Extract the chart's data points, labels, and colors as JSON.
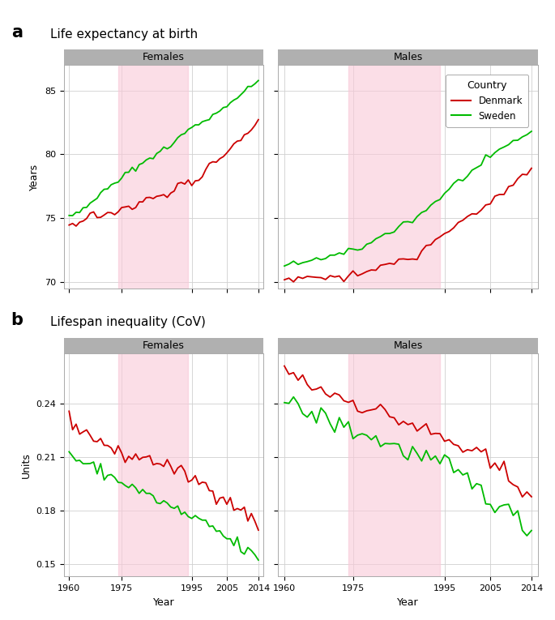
{
  "years": [
    1960,
    1961,
    1962,
    1963,
    1964,
    1965,
    1966,
    1967,
    1968,
    1969,
    1970,
    1971,
    1972,
    1973,
    1974,
    1975,
    1976,
    1977,
    1978,
    1979,
    1980,
    1981,
    1982,
    1983,
    1984,
    1985,
    1986,
    1987,
    1988,
    1989,
    1990,
    1991,
    1992,
    1993,
    1994,
    1995,
    1996,
    1997,
    1998,
    1999,
    2000,
    2001,
    2002,
    2003,
    2004,
    2005,
    2006,
    2007,
    2008,
    2009,
    2010,
    2011,
    2012,
    2013,
    2014
  ],
  "le_female_denmark": [
    74.4,
    74.6,
    74.3,
    74.5,
    74.8,
    75.0,
    75.2,
    75.4,
    75.1,
    75.0,
    75.3,
    75.5,
    75.4,
    75.5,
    75.7,
    75.9,
    76.0,
    75.9,
    75.8,
    76.0,
    76.1,
    76.3,
    76.6,
    76.8,
    76.6,
    76.7,
    76.9,
    76.8,
    76.7,
    77.0,
    77.2,
    77.5,
    77.8,
    77.8,
    77.9,
    77.7,
    77.9,
    78.2,
    78.4,
    78.8,
    79.2,
    79.4,
    79.4,
    79.7,
    80.0,
    80.2,
    80.5,
    80.7,
    81.0,
    81.3,
    81.5,
    81.7,
    82.0,
    82.2,
    82.6
  ],
  "le_female_sweden": [
    75.1,
    75.3,
    75.5,
    75.4,
    75.7,
    75.9,
    76.2,
    76.5,
    76.7,
    76.9,
    77.1,
    77.3,
    77.5,
    77.7,
    77.9,
    78.1,
    78.4,
    78.6,
    78.8,
    79.0,
    79.1,
    79.3,
    79.6,
    79.7,
    79.9,
    80.1,
    80.2,
    80.4,
    80.5,
    80.7,
    81.0,
    81.2,
    81.5,
    81.7,
    81.9,
    82.1,
    82.2,
    82.4,
    82.6,
    82.7,
    82.9,
    83.1,
    83.2,
    83.4,
    83.7,
    83.9,
    84.1,
    84.3,
    84.5,
    84.7,
    84.9,
    85.1,
    85.3,
    85.5,
    85.8
  ],
  "le_male_denmark": [
    70.4,
    70.3,
    70.0,
    70.1,
    70.3,
    70.4,
    70.4,
    70.5,
    70.2,
    70.1,
    70.4,
    70.5,
    70.3,
    70.2,
    70.4,
    70.6,
    70.6,
    70.7,
    70.8,
    71.0,
    71.1,
    71.3,
    71.5,
    71.4,
    71.5,
    71.6,
    71.9,
    71.8,
    71.7,
    71.9,
    72.4,
    72.7,
    73.1,
    73.3,
    73.5,
    73.7,
    74.1,
    74.4,
    74.6,
    74.8,
    75.1,
    75.3,
    75.4,
    75.6,
    76.0,
    76.2,
    76.5,
    76.8,
    77.0,
    77.4,
    77.7,
    78.0,
    78.3,
    78.5,
    78.8
  ],
  "le_male_sweden": [
    71.2,
    71.3,
    71.4,
    71.4,
    71.6,
    71.7,
    71.8,
    71.9,
    71.7,
    71.8,
    72.0,
    72.1,
    72.1,
    72.2,
    72.3,
    72.5,
    72.6,
    72.7,
    72.9,
    73.1,
    73.3,
    73.5,
    73.8,
    73.9,
    74.1,
    74.4,
    74.6,
    74.7,
    74.8,
    75.1,
    75.4,
    75.7,
    76.0,
    76.3,
    76.6,
    76.9,
    77.2,
    77.6,
    77.9,
    78.1,
    78.4,
    78.7,
    78.9,
    79.1,
    79.5,
    79.7,
    80.0,
    80.3,
    80.5,
    80.8,
    81.0,
    81.2,
    81.4,
    81.6,
    81.8
  ],
  "cov_female_denmark": [
    0.231,
    0.229,
    0.227,
    0.226,
    0.225,
    0.223,
    0.222,
    0.221,
    0.22,
    0.219,
    0.218,
    0.216,
    0.215,
    0.213,
    0.212,
    0.211,
    0.211,
    0.21,
    0.21,
    0.21,
    0.21,
    0.21,
    0.209,
    0.209,
    0.208,
    0.207,
    0.207,
    0.206,
    0.205,
    0.204,
    0.203,
    0.202,
    0.201,
    0.2,
    0.199,
    0.198,
    0.197,
    0.196,
    0.195,
    0.194,
    0.193,
    0.191,
    0.19,
    0.189,
    0.188,
    0.186,
    0.184,
    0.183,
    0.182,
    0.18,
    0.179,
    0.177,
    0.176,
    0.174,
    0.171
  ],
  "cov_female_sweden": [
    0.212,
    0.21,
    0.209,
    0.208,
    0.207,
    0.206,
    0.205,
    0.204,
    0.203,
    0.202,
    0.201,
    0.2,
    0.199,
    0.198,
    0.197,
    0.196,
    0.195,
    0.194,
    0.193,
    0.192,
    0.191,
    0.19,
    0.189,
    0.188,
    0.187,
    0.186,
    0.185,
    0.184,
    0.183,
    0.182,
    0.181,
    0.18,
    0.179,
    0.178,
    0.177,
    0.176,
    0.175,
    0.174,
    0.173,
    0.172,
    0.171,
    0.17,
    0.169,
    0.168,
    0.166,
    0.164,
    0.163,
    0.162,
    0.161,
    0.159,
    0.158,
    0.157,
    0.156,
    0.154,
    0.151
  ],
  "cov_male_denmark": [
    0.261,
    0.259,
    0.257,
    0.255,
    0.253,
    0.251,
    0.25,
    0.249,
    0.248,
    0.247,
    0.246,
    0.245,
    0.244,
    0.243,
    0.242,
    0.241,
    0.24,
    0.239,
    0.238,
    0.237,
    0.236,
    0.235,
    0.234,
    0.233,
    0.232,
    0.231,
    0.23,
    0.229,
    0.228,
    0.227,
    0.225,
    0.224,
    0.223,
    0.222,
    0.221,
    0.22,
    0.219,
    0.217,
    0.216,
    0.215,
    0.214,
    0.212,
    0.211,
    0.21,
    0.208,
    0.206,
    0.204,
    0.202,
    0.201,
    0.199,
    0.197,
    0.195,
    0.194,
    0.192,
    0.19
  ],
  "cov_male_sweden": [
    0.24,
    0.239,
    0.238,
    0.237,
    0.236,
    0.235,
    0.234,
    0.233,
    0.232,
    0.231,
    0.23,
    0.229,
    0.228,
    0.227,
    0.226,
    0.225,
    0.224,
    0.223,
    0.222,
    0.221,
    0.22,
    0.219,
    0.218,
    0.217,
    0.216,
    0.215,
    0.214,
    0.213,
    0.212,
    0.211,
    0.21,
    0.209,
    0.208,
    0.207,
    0.206,
    0.205,
    0.204,
    0.202,
    0.2,
    0.198,
    0.197,
    0.195,
    0.193,
    0.191,
    0.189,
    0.187,
    0.185,
    0.183,
    0.181,
    0.179,
    0.177,
    0.175,
    0.173,
    0.171,
    0.169
  ],
  "shade_start": 1974,
  "shade_end": 1994,
  "shade_color": "#f9c8d8",
  "shade_alpha": 0.6,
  "denmark_color": "#cc0000",
  "sweden_color": "#00bb00",
  "strip_bg": "#b0b0b0",
  "plot_bg": "#ffffff",
  "grid_color": "#d0d0d0",
  "title_a": "Life expectancy at birth",
  "title_b": "Lifespan inequality (CoV)",
  "ylabel_a": "Years",
  "ylabel_b": "Units",
  "xlabel": "Year",
  "legend_title": "Country",
  "legend_denmark": "Denmark",
  "legend_sweden": "Sweden",
  "ylim_a": [
    69.5,
    87.0
  ],
  "yticks_a": [
    70,
    75,
    80,
    85
  ],
  "ylim_b": [
    0.143,
    0.268
  ],
  "yticks_b": [
    0.15,
    0.18,
    0.21,
    0.24
  ],
  "xticks": [
    1960,
    1975,
    1995,
    2005,
    2014
  ],
  "xmin": 1958.5,
  "xmax": 2015.5
}
